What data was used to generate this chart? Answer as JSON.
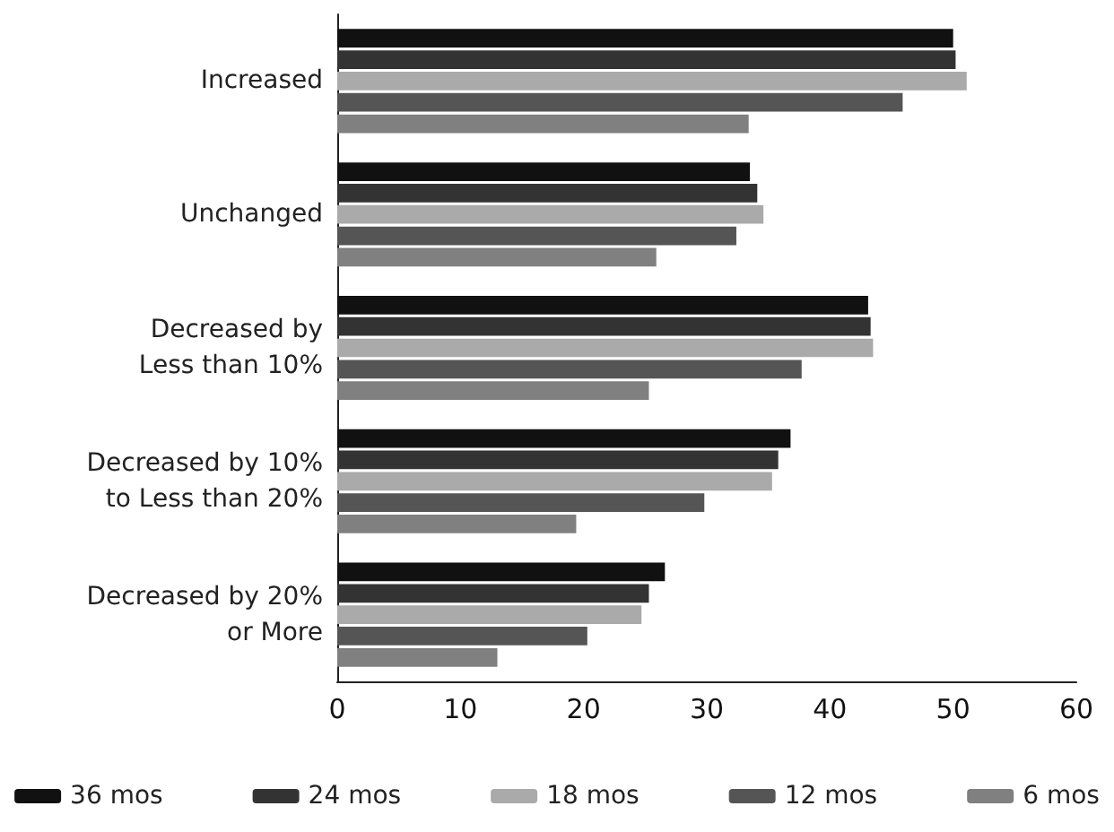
{
  "chart_data": {
    "type": "bar",
    "orientation": "horizontal",
    "categories": [
      "Increased",
      "Unchanged",
      "Decreased by\nLess than 10%",
      "Decreased by 10%\nto Less than 20%",
      "Decreased by 20%\nor More"
    ],
    "series": [
      {
        "name": "36 mos",
        "color": "#111111",
        "values": [
          50.0,
          33.5,
          43.1,
          36.8,
          26.6
        ]
      },
      {
        "name": "24 mos",
        "color": "#333333",
        "values": [
          50.2,
          34.1,
          43.3,
          35.8,
          25.3
        ]
      },
      {
        "name": "18 mos",
        "color": "#aaaaaa",
        "values": [
          51.1,
          34.6,
          43.5,
          35.3,
          24.7
        ]
      },
      {
        "name": "12 mos",
        "color": "#555555",
        "values": [
          45.9,
          32.4,
          37.7,
          29.8,
          20.3
        ]
      },
      {
        "name": "6 mos",
        "color": "#808080",
        "values": [
          33.4,
          25.9,
          25.3,
          19.4,
          13.0
        ]
      }
    ],
    "xlim": [
      0,
      60
    ],
    "xticks": [
      0,
      10,
      20,
      30,
      40,
      50,
      60
    ],
    "grid": false,
    "legend": "bottom"
  }
}
